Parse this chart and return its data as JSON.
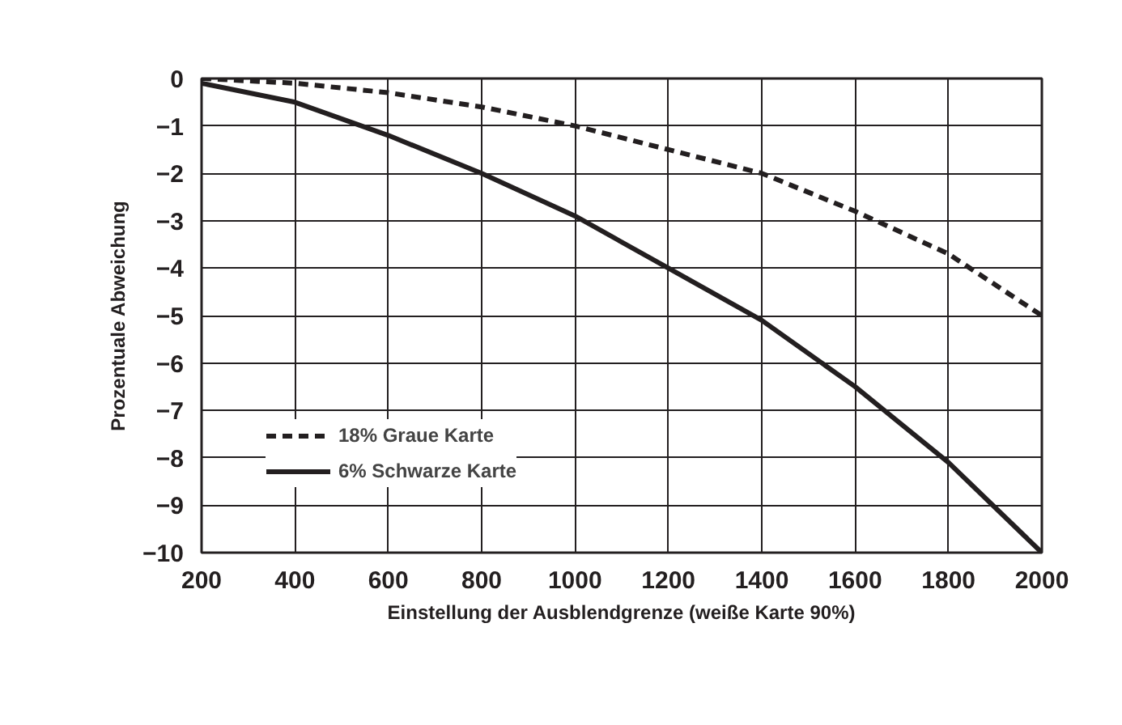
{
  "chart_data": {
    "type": "line",
    "xlabel": "Einstellung der Ausblendgrenze (weiße Karte 90%)",
    "ylabel": "Prozentuale Abweichung",
    "x": [
      200,
      400,
      600,
      800,
      1000,
      1200,
      1400,
      1600,
      1800,
      2000
    ],
    "series": [
      {
        "name": "18% Graue Karte",
        "color": "#231f20",
        "line_style": "dashed",
        "values": [
          0,
          -0.1,
          -0.3,
          -0.6,
          -1.0,
          -1.5,
          -2.0,
          -2.8,
          -3.7,
          -5.0
        ]
      },
      {
        "name": "6% Schwarze Karte",
        "color": "#231f20",
        "line_style": "solid",
        "values": [
          -0.1,
          -0.5,
          -1.2,
          -2.0,
          -2.9,
          -4.0,
          -5.1,
          -6.5,
          -8.1,
          -10.0
        ]
      }
    ],
    "xlim": [
      200,
      2000
    ],
    "ylim": [
      -10,
      0
    ],
    "xticks": [
      200,
      400,
      600,
      800,
      1000,
      1200,
      1400,
      1600,
      1800,
      2000
    ],
    "yticks": [
      0,
      -1,
      -2,
      -3,
      -4,
      -5,
      -6,
      -7,
      -8,
      -9,
      -10
    ],
    "grid": true,
    "legend": "bottom left",
    "marker": "none"
  }
}
